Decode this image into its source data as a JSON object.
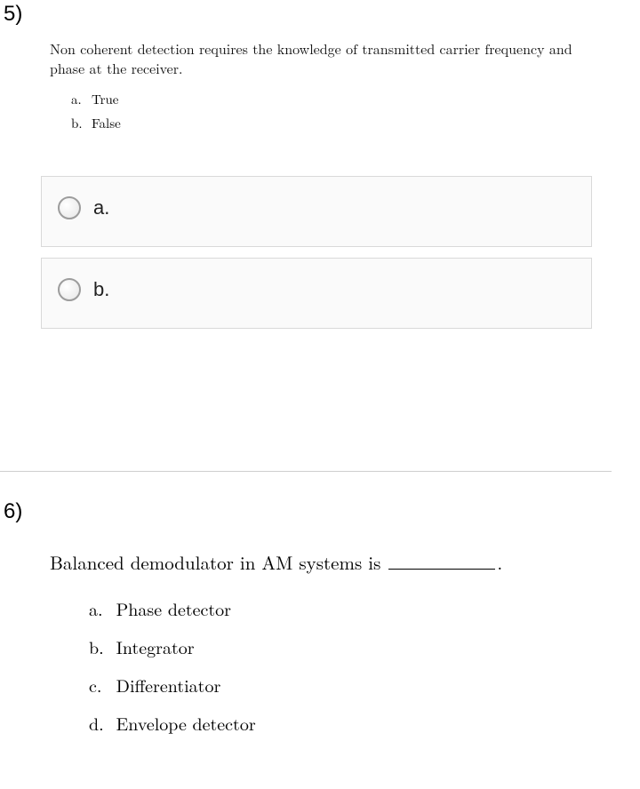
{
  "q5": {
    "number": "5)",
    "stem": "Non coherent detection requires the knowledge of transmitted carrier frequency and phase at the receiver.",
    "options": [
      {
        "letter": "a.",
        "text": "True"
      },
      {
        "letter": "b.",
        "text": "False"
      }
    ],
    "answers": [
      {
        "label": "a."
      },
      {
        "label": "b."
      }
    ]
  },
  "q6": {
    "number": "6)",
    "stem_prefix": "Balanced demodulator in AM systems is ",
    "stem_suffix": ".",
    "options": [
      {
        "letter": "a.",
        "text": "Phase detector"
      },
      {
        "letter": "b.",
        "text": "Integrator"
      },
      {
        "letter": "c.",
        "text": "Differentiator"
      },
      {
        "letter": "d.",
        "text": "Envelope detector"
      }
    ]
  }
}
